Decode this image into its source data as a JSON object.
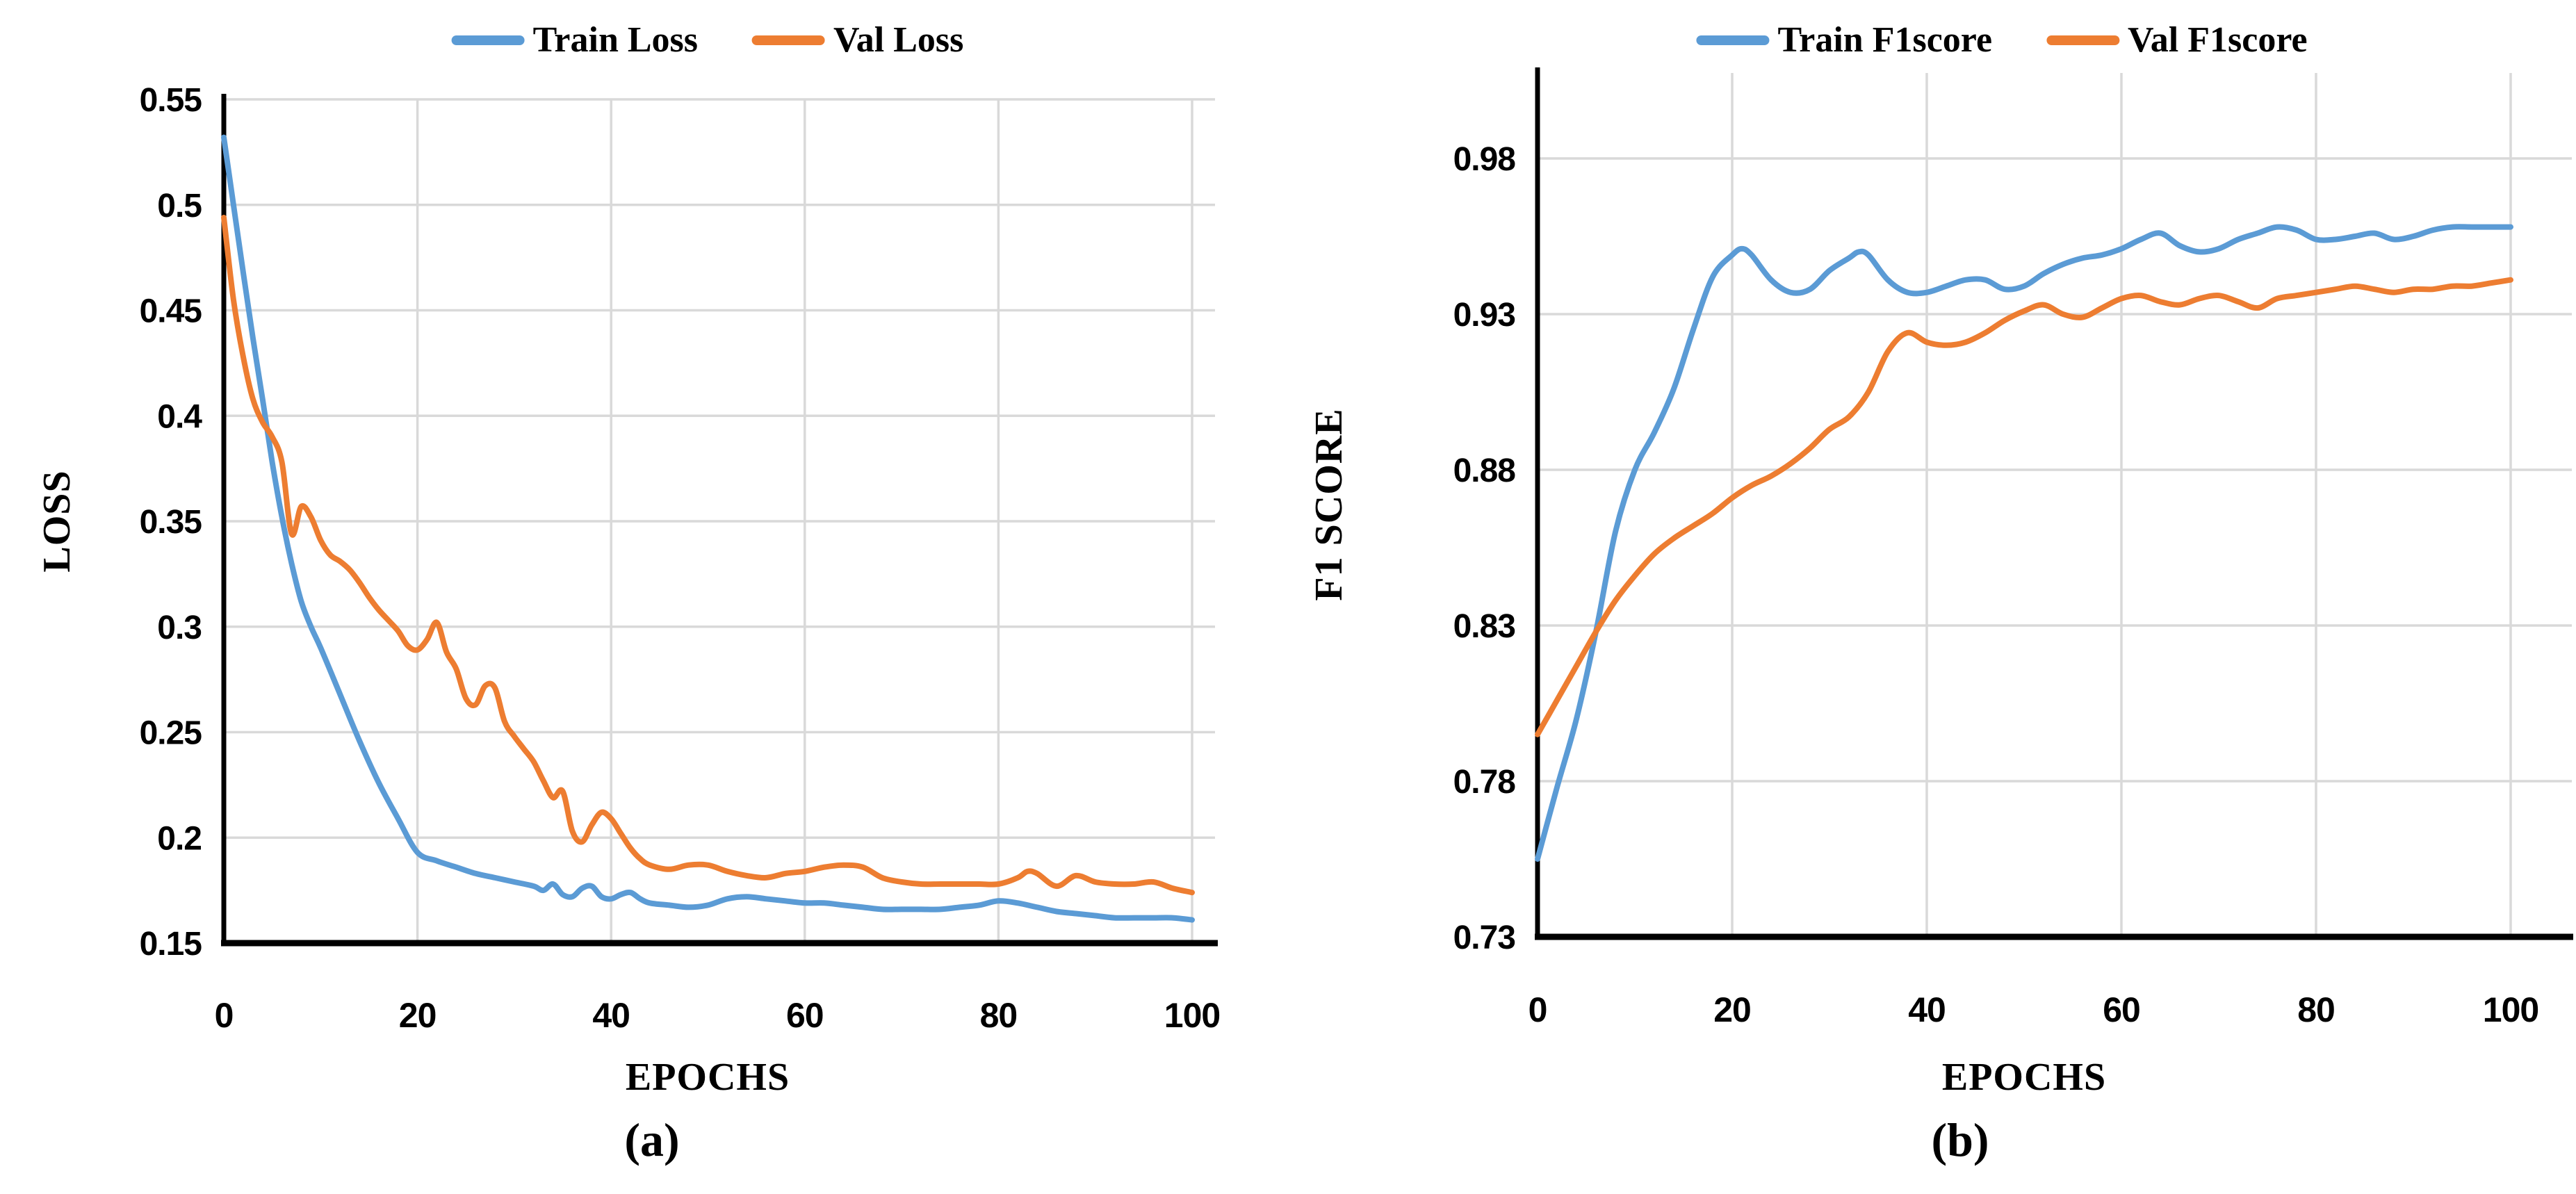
{
  "figure": {
    "background": "#ffffff",
    "grid_color": "#d9d9d9",
    "axis_color": "#000000",
    "series_blue": "#5B9BD5",
    "series_orange": "#ED7D31"
  },
  "chart_data": [
    {
      "type": "line",
      "panel": "a",
      "caption": "(a)",
      "xlabel": "EPOCHS",
      "ylabel": "LOSS",
      "xlim": [
        0,
        100
      ],
      "ylim": [
        0.15,
        0.55
      ],
      "grid": true,
      "legend_position": "top",
      "xticks": [
        0,
        20,
        40,
        60,
        80,
        100
      ],
      "xtick_labels": [
        "0",
        "20",
        "40",
        "60",
        "80",
        "100"
      ],
      "yticks": [
        0.15,
        0.2,
        0.25,
        0.3,
        0.35,
        0.4,
        0.45,
        0.5,
        0.55
      ],
      "ytick_labels": [
        "0.15",
        "0.2",
        "0.25",
        "0.3",
        "0.35",
        "0.4",
        "0.45",
        "0.5",
        "0.55"
      ],
      "series": [
        {
          "name": "Train Loss",
          "color": "#5B9BD5",
          "points": [
            [
              0,
              0.532
            ],
            [
              1,
              0.5
            ],
            [
              2,
              0.468
            ],
            [
              3,
              0.437
            ],
            [
              4,
              0.408
            ],
            [
              5,
              0.378
            ],
            [
              6,
              0.352
            ],
            [
              7,
              0.33
            ],
            [
              8,
              0.312
            ],
            [
              9,
              0.3
            ],
            [
              10,
              0.29
            ],
            [
              12,
              0.268
            ],
            [
              14,
              0.246
            ],
            [
              16,
              0.226
            ],
            [
              18,
              0.209
            ],
            [
              20,
              0.193
            ],
            [
              22,
              0.189
            ],
            [
              24,
              0.186
            ],
            [
              26,
              0.183
            ],
            [
              28,
              0.181
            ],
            [
              30,
              0.179
            ],
            [
              32,
              0.177
            ],
            [
              33,
              0.175
            ],
            [
              34,
              0.178
            ],
            [
              35,
              0.173
            ],
            [
              36,
              0.172
            ],
            [
              37,
              0.176
            ],
            [
              38,
              0.177
            ],
            [
              39,
              0.172
            ],
            [
              40,
              0.171
            ],
            [
              41,
              0.173
            ],
            [
              42,
              0.174
            ],
            [
              43,
              0.171
            ],
            [
              44,
              0.169
            ],
            [
              46,
              0.168
            ],
            [
              48,
              0.167
            ],
            [
              50,
              0.168
            ],
            [
              52,
              0.171
            ],
            [
              54,
              0.172
            ],
            [
              56,
              0.171
            ],
            [
              58,
              0.17
            ],
            [
              60,
              0.169
            ],
            [
              62,
              0.169
            ],
            [
              64,
              0.168
            ],
            [
              66,
              0.167
            ],
            [
              68,
              0.166
            ],
            [
              70,
              0.166
            ],
            [
              72,
              0.166
            ],
            [
              74,
              0.166
            ],
            [
              76,
              0.167
            ],
            [
              78,
              0.168
            ],
            [
              80,
              0.17
            ],
            [
              82,
              0.169
            ],
            [
              84,
              0.167
            ],
            [
              86,
              0.165
            ],
            [
              88,
              0.164
            ],
            [
              90,
              0.163
            ],
            [
              92,
              0.162
            ],
            [
              94,
              0.162
            ],
            [
              96,
              0.162
            ],
            [
              98,
              0.162
            ],
            [
              100,
              0.161
            ]
          ]
        },
        {
          "name": "Val Loss",
          "color": "#ED7D31",
          "points": [
            [
              0,
              0.494
            ],
            [
              1,
              0.455
            ],
            [
              2,
              0.428
            ],
            [
              3,
              0.408
            ],
            [
              4,
              0.397
            ],
            [
              5,
              0.39
            ],
            [
              6,
              0.378
            ],
            [
              7,
              0.344
            ],
            [
              8,
              0.357
            ],
            [
              9,
              0.352
            ],
            [
              10,
              0.341
            ],
            [
              11,
              0.334
            ],
            [
              12,
              0.331
            ],
            [
              13,
              0.327
            ],
            [
              14,
              0.321
            ],
            [
              15,
              0.314
            ],
            [
              16,
              0.308
            ],
            [
              17,
              0.303
            ],
            [
              18,
              0.298
            ],
            [
              19,
              0.291
            ],
            [
              20,
              0.289
            ],
            [
              21,
              0.294
            ],
            [
              22,
              0.302
            ],
            [
              23,
              0.288
            ],
            [
              24,
              0.28
            ],
            [
              25,
              0.266
            ],
            [
              26,
              0.263
            ],
            [
              27,
              0.272
            ],
            [
              28,
              0.271
            ],
            [
              29,
              0.255
            ],
            [
              30,
              0.248
            ],
            [
              31,
              0.242
            ],
            [
              32,
              0.236
            ],
            [
              33,
              0.227
            ],
            [
              34,
              0.219
            ],
            [
              35,
              0.222
            ],
            [
              36,
              0.203
            ],
            [
              37,
              0.198
            ],
            [
              38,
              0.206
            ],
            [
              39,
              0.212
            ],
            [
              40,
              0.209
            ],
            [
              41,
              0.202
            ],
            [
              42,
              0.195
            ],
            [
              43,
              0.19
            ],
            [
              44,
              0.187
            ],
            [
              46,
              0.185
            ],
            [
              48,
              0.187
            ],
            [
              50,
              0.187
            ],
            [
              52,
              0.184
            ],
            [
              54,
              0.182
            ],
            [
              56,
              0.181
            ],
            [
              58,
              0.183
            ],
            [
              60,
              0.184
            ],
            [
              62,
              0.186
            ],
            [
              64,
              0.187
            ],
            [
              66,
              0.186
            ],
            [
              68,
              0.181
            ],
            [
              70,
              0.179
            ],
            [
              72,
              0.178
            ],
            [
              74,
              0.178
            ],
            [
              76,
              0.178
            ],
            [
              78,
              0.178
            ],
            [
              80,
              0.178
            ],
            [
              82,
              0.181
            ],
            [
              83,
              0.184
            ],
            [
              84,
              0.183
            ],
            [
              86,
              0.177
            ],
            [
              88,
              0.182
            ],
            [
              90,
              0.179
            ],
            [
              92,
              0.178
            ],
            [
              94,
              0.178
            ],
            [
              96,
              0.179
            ],
            [
              98,
              0.176
            ],
            [
              100,
              0.174
            ]
          ]
        }
      ]
    },
    {
      "type": "line",
      "panel": "b",
      "caption": "(b)",
      "xlabel": "EPOCHS",
      "ylabel": "F1 SCORE",
      "xlim": [
        0,
        100
      ],
      "ylim": [
        0.73,
        0.98
      ],
      "grid": true,
      "legend_position": "top",
      "xticks": [
        0,
        20,
        40,
        60,
        80,
        100
      ],
      "xtick_labels": [
        "0",
        "20",
        "40",
        "60",
        "80",
        "100"
      ],
      "yticks": [
        0.73,
        0.78,
        0.83,
        0.88,
        0.93,
        0.98
      ],
      "ytick_labels": [
        "0.73",
        "0.78",
        "0.83",
        "0.88",
        "0.93",
        "0.98"
      ],
      "series": [
        {
          "name": "Train F1score",
          "color": "#5B9BD5",
          "points": [
            [
              0,
              0.755
            ],
            [
              2,
              0.778
            ],
            [
              4,
              0.8
            ],
            [
              6,
              0.828
            ],
            [
              8,
              0.86
            ],
            [
              10,
              0.88
            ],
            [
              12,
              0.892
            ],
            [
              14,
              0.906
            ],
            [
              16,
              0.925
            ],
            [
              18,
              0.942
            ],
            [
              20,
              0.949
            ],
            [
              21,
              0.951
            ],
            [
              22,
              0.949
            ],
            [
              24,
              0.941
            ],
            [
              26,
              0.937
            ],
            [
              28,
              0.938
            ],
            [
              30,
              0.944
            ],
            [
              32,
              0.948
            ],
            [
              33,
              0.95
            ],
            [
              34,
              0.949
            ],
            [
              36,
              0.941
            ],
            [
              38,
              0.937
            ],
            [
              40,
              0.937
            ],
            [
              42,
              0.939
            ],
            [
              44,
              0.941
            ],
            [
              46,
              0.941
            ],
            [
              48,
              0.938
            ],
            [
              50,
              0.939
            ],
            [
              52,
              0.943
            ],
            [
              54,
              0.946
            ],
            [
              56,
              0.948
            ],
            [
              58,
              0.949
            ],
            [
              60,
              0.951
            ],
            [
              62,
              0.954
            ],
            [
              64,
              0.956
            ],
            [
              66,
              0.952
            ],
            [
              68,
              0.95
            ],
            [
              70,
              0.951
            ],
            [
              72,
              0.954
            ],
            [
              74,
              0.956
            ],
            [
              76,
              0.958
            ],
            [
              78,
              0.957
            ],
            [
              80,
              0.954
            ],
            [
              82,
              0.954
            ],
            [
              84,
              0.955
            ],
            [
              86,
              0.956
            ],
            [
              88,
              0.954
            ],
            [
              90,
              0.955
            ],
            [
              92,
              0.957
            ],
            [
              94,
              0.958
            ],
            [
              96,
              0.958
            ],
            [
              98,
              0.958
            ],
            [
              100,
              0.958
            ]
          ]
        },
        {
          "name": "Val F1score",
          "color": "#ED7D31",
          "points": [
            [
              0,
              0.795
            ],
            [
              2,
              0.806
            ],
            [
              4,
              0.817
            ],
            [
              6,
              0.828
            ],
            [
              8,
              0.838
            ],
            [
              10,
              0.846
            ],
            [
              12,
              0.853
            ],
            [
              14,
              0.858
            ],
            [
              16,
              0.862
            ],
            [
              18,
              0.866
            ],
            [
              20,
              0.871
            ],
            [
              22,
              0.875
            ],
            [
              24,
              0.878
            ],
            [
              26,
              0.882
            ],
            [
              28,
              0.887
            ],
            [
              30,
              0.893
            ],
            [
              32,
              0.897
            ],
            [
              34,
              0.905
            ],
            [
              36,
              0.918
            ],
            [
              38,
              0.924
            ],
            [
              40,
              0.921
            ],
            [
              42,
              0.92
            ],
            [
              44,
              0.921
            ],
            [
              46,
              0.924
            ],
            [
              48,
              0.928
            ],
            [
              50,
              0.931
            ],
            [
              52,
              0.933
            ],
            [
              54,
              0.93
            ],
            [
              56,
              0.929
            ],
            [
              58,
              0.932
            ],
            [
              60,
              0.935
            ],
            [
              62,
              0.936
            ],
            [
              64,
              0.934
            ],
            [
              66,
              0.933
            ],
            [
              68,
              0.935
            ],
            [
              70,
              0.936
            ],
            [
              72,
              0.934
            ],
            [
              74,
              0.932
            ],
            [
              76,
              0.935
            ],
            [
              78,
              0.936
            ],
            [
              80,
              0.937
            ],
            [
              82,
              0.938
            ],
            [
              84,
              0.939
            ],
            [
              86,
              0.938
            ],
            [
              88,
              0.937
            ],
            [
              90,
              0.938
            ],
            [
              92,
              0.938
            ],
            [
              94,
              0.939
            ],
            [
              96,
              0.939
            ],
            [
              98,
              0.94
            ],
            [
              100,
              0.941
            ]
          ]
        }
      ]
    }
  ]
}
